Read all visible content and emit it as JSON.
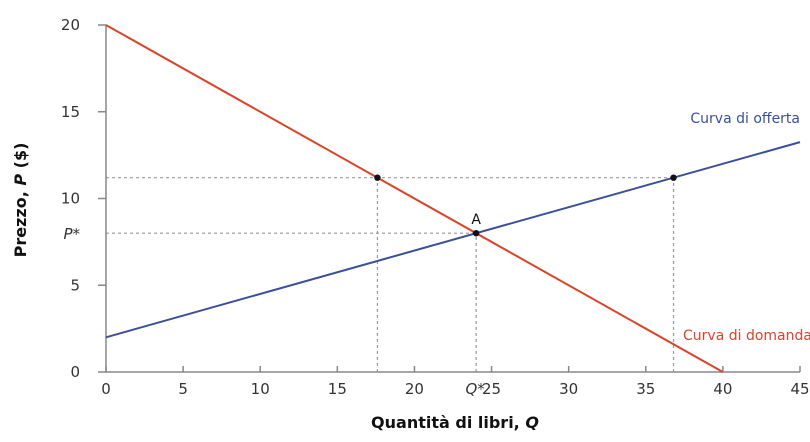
{
  "chart_data": {
    "type": "line",
    "title": "",
    "xlabel": "Quantità di libri, Q",
    "ylabel": "Prezzo, P ($)",
    "xlim": [
      0,
      45
    ],
    "ylim": [
      0,
      20
    ],
    "x_ticks": [
      0,
      5,
      10,
      15,
      20,
      25,
      30,
      35,
      40,
      45
    ],
    "y_ticks": [
      0,
      5,
      10,
      15,
      20
    ],
    "extra_x_tick": {
      "label": "Q*",
      "value": 24
    },
    "extra_y_tick": {
      "label": "P*",
      "value": 8
    },
    "grid": false,
    "series": [
      {
        "name": "Curva di domanda",
        "color": "#d9442b",
        "points": [
          [
            0,
            20
          ],
          [
            40,
            0
          ]
        ],
        "label_position": [
          37,
          2.2
        ]
      },
      {
        "name": "Curva di offerta",
        "color": "#3b4f9a",
        "points": [
          [
            0,
            2
          ],
          [
            45,
            13.25
          ]
        ],
        "label_position": [
          45,
          14.5
        ]
      }
    ],
    "points": [
      {
        "label": "A",
        "x": 24,
        "y": 8
      },
      {
        "label": "",
        "x": 17.6,
        "y": 11.2
      },
      {
        "label": "",
        "x": 36.8,
        "y": 11.2
      }
    ],
    "reference_lines": [
      {
        "type": "horizontal",
        "y": 11.2,
        "x_from": 0,
        "x_to": 36.8,
        "style": "dotted"
      },
      {
        "type": "horizontal",
        "y": 8,
        "x_from": 0,
        "x_to": 24,
        "style": "dotted"
      },
      {
        "type": "vertical",
        "x": 17.6,
        "y_from": 0,
        "y_to": 11.2,
        "style": "dotted"
      },
      {
        "type": "vertical",
        "x": 24,
        "y_from": 0,
        "y_to": 8,
        "style": "dotted"
      },
      {
        "type": "vertical",
        "x": 36.8,
        "y_from": 0,
        "y_to": 11.2,
        "style": "dotted"
      }
    ]
  },
  "labels": {
    "xlabel": "Quantità di libri, Q",
    "ylabel_prefix": "Prezzo, ",
    "ylabel_var": "P",
    "ylabel_suffix": " ($)",
    "xlabel_prefix": "Quantità di libri, ",
    "xlabel_var": "Q",
    "demand": "Curva di domanda",
    "supply": "Curva di offerta",
    "point_a": "A",
    "q_star": "Q*",
    "p_star": "P*"
  },
  "colors": {
    "demand": "#d9442b",
    "supply": "#3b4f9a",
    "axis": "#888888",
    "reference": "#999999",
    "point": "#111111"
  }
}
